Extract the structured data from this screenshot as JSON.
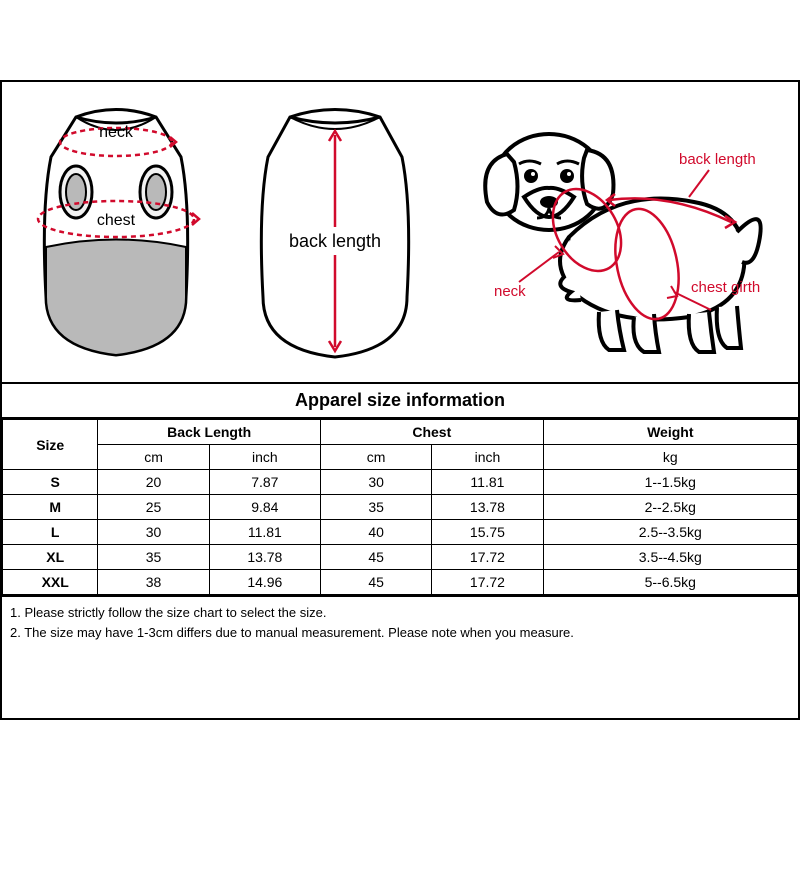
{
  "colors": {
    "line": "#000000",
    "measure": "#d10a2c",
    "fill_gray": "#b9b9b9",
    "fill_light": "#f2f2f2",
    "bg": "#ffffff"
  },
  "diagram_labels": {
    "neck_front": "neck",
    "chest_front": "chest",
    "back_length_center": "back length",
    "neck_dog": "neck",
    "back_length_dog": "back length",
    "chest_girth_dog": "chest girth"
  },
  "table": {
    "title": "Apparel  size  information",
    "headers": {
      "size": "Size",
      "back_length": "Back Length",
      "chest": "Chest",
      "weight": "Weight",
      "cm": "cm",
      "inch": "inch",
      "kg": "kg"
    },
    "rows": [
      {
        "size": "S",
        "bl_cm": "20",
        "bl_in": "7.87",
        "ch_cm": "30",
        "ch_in": "11.81",
        "weight": "1--1.5kg"
      },
      {
        "size": "M",
        "bl_cm": "25",
        "bl_in": "9.84",
        "ch_cm": "35",
        "ch_in": "13.78",
        "weight": "2--2.5kg"
      },
      {
        "size": "L",
        "bl_cm": "30",
        "bl_in": "11.81",
        "ch_cm": "40",
        "ch_in": "15.75",
        "weight": "2.5--3.5kg"
      },
      {
        "size": "XL",
        "bl_cm": "35",
        "bl_in": "13.78",
        "ch_cm": "45",
        "ch_in": "17.72",
        "weight": "3.5--4.5kg"
      },
      {
        "size": "XXL",
        "bl_cm": "38",
        "bl_in": "14.96",
        "ch_cm": "45",
        "ch_in": "17.72",
        "weight": "5--6.5kg"
      }
    ],
    "column_widths_pct": [
      12,
      14,
      14,
      14,
      14,
      32
    ]
  },
  "notes": [
    "1. Please strictly follow the size chart  to select the size.",
    "2. The size may have 1-3cm differs due to manual measurement. Please note when you measure."
  ]
}
